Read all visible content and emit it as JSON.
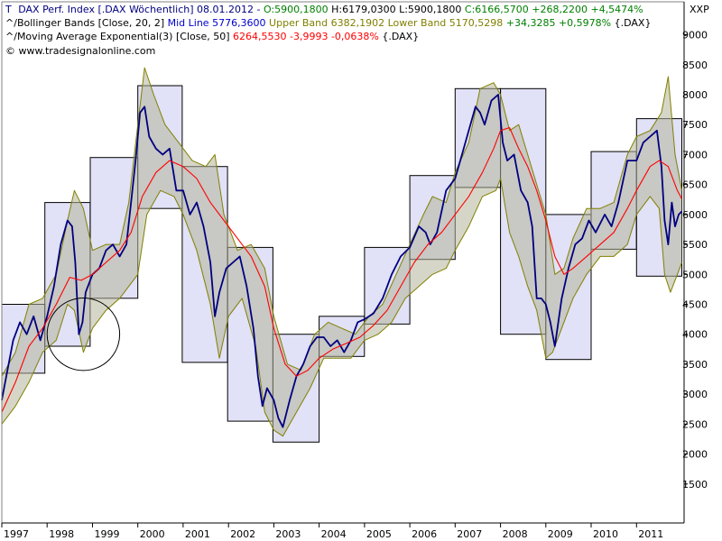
{
  "legend": {
    "line1": {
      "symbol": "T",
      "instrument": "DAX Perf. Index [.DAX  Wöchentlich] 08.01.2012 - ",
      "ohl_green": "O:5900,1800",
      "ohl_black": " H:6179,0300 L:5900,1800 ",
      "close_green": "C:6166,5700 +268,2200 +4,5474%"
    },
    "line2": {
      "symbol": "^/",
      "name": "Bollinger Bands [Close, 20, 2] ",
      "mid": "Mid Line 5776,3600",
      "upper": " Upper Band 6382,1902",
      "lower": " Lower Band 5170,5298",
      "change": " +34,3285 +0,5978%",
      "suffix": " {.DAX}"
    },
    "line3": {
      "symbol": "^/",
      "name": "Moving Average Exponential(3) [Close, 50] ",
      "values": "6264,5530 -3,9993 -0,0638%",
      "suffix": " {.DAX}"
    },
    "line4": {
      "copyright": "© www.tradesignalonline.com"
    }
  },
  "axis_corner_label": "XXP",
  "colors": {
    "price": "#000080",
    "ema": "#ff0000",
    "band_line": "#808000",
    "band_fill": "#b5b59a",
    "box_fill": "#c8c8f0",
    "box_stroke": "#000000",
    "green_text": "#008000",
    "blue_text": "#0000cc",
    "olive_text": "#808000"
  },
  "chart_data": {
    "type": "line",
    "instrument": "DAX Perf. Index",
    "interval": "Wöchentlich",
    "y_ticks": [
      1500,
      2000,
      2500,
      3000,
      3500,
      4000,
      4500,
      5000,
      5500,
      6000,
      6500,
      7000,
      7500,
      8000,
      8500,
      9000
    ],
    "ylim": [
      850,
      9550
    ],
    "x_ticks": [
      "1997",
      "1998",
      "1999",
      "2000",
      "2001",
      "2002",
      "2003",
      "2004",
      "2005",
      "2006",
      "2007",
      "2008",
      "2009",
      "2010",
      "2011"
    ],
    "xlim": [
      1997.0,
      2012.05
    ],
    "series": [
      {
        "name": "DAX Perf. Index",
        "kind": "price",
        "x": [
          1997.0,
          1997.1,
          1997.25,
          1997.4,
          1997.55,
          1997.7,
          1997.85,
          1998.0,
          1998.15,
          1998.3,
          1998.45,
          1998.55,
          1998.62,
          1998.7,
          1998.78,
          1998.85,
          1999.0,
          1999.15,
          1999.3,
          1999.45,
          1999.6,
          1999.75,
          1999.85,
          1999.95,
          2000.05,
          2000.15,
          2000.25,
          2000.4,
          2000.55,
          2000.7,
          2000.85,
          2001.0,
          2001.15,
          2001.3,
          2001.45,
          2001.6,
          2001.7,
          2001.8,
          2001.95,
          2002.1,
          2002.25,
          2002.4,
          2002.55,
          2002.65,
          2002.75,
          2002.85,
          2003.0,
          2003.1,
          2003.2,
          2003.35,
          2003.5,
          2003.65,
          2003.8,
          2003.95,
          2004.1,
          2004.25,
          2004.4,
          2004.55,
          2004.7,
          2004.85,
          2005.0,
          2005.2,
          2005.4,
          2005.6,
          2005.8,
          2006.0,
          2006.2,
          2006.35,
          2006.45,
          2006.6,
          2006.8,
          2007.0,
          2007.15,
          2007.3,
          2007.45,
          2007.55,
          2007.65,
          2007.8,
          2007.95,
          2008.05,
          2008.15,
          2008.3,
          2008.45,
          2008.6,
          2008.7,
          2008.8,
          2008.9,
          2009.0,
          2009.1,
          2009.2,
          2009.35,
          2009.5,
          2009.65,
          2009.8,
          2009.95,
          2010.1,
          2010.3,
          2010.45,
          2010.6,
          2010.8,
          2011.0,
          2011.15,
          2011.3,
          2011.45,
          2011.55,
          2011.62,
          2011.7,
          2011.78,
          2011.85,
          2011.93,
          2012.0
        ],
        "y": [
          2900,
          3300,
          3900,
          4200,
          4000,
          4300,
          3900,
          4300,
          4800,
          5500,
          5900,
          5800,
          5200,
          4000,
          4200,
          4700,
          5000,
          5100,
          5400,
          5500,
          5300,
          5500,
          6200,
          6900,
          7700,
          7800,
          7300,
          7100,
          7000,
          7100,
          6400,
          6400,
          6000,
          6200,
          5800,
          5200,
          4300,
          4700,
          5100,
          5200,
          5300,
          4800,
          4100,
          3300,
          2800,
          3100,
          2900,
          2600,
          2450,
          2900,
          3300,
          3500,
          3800,
          3950,
          3950,
          3800,
          3900,
          3700,
          3900,
          4200,
          4250,
          4350,
          4600,
          5000,
          5300,
          5450,
          5800,
          5700,
          5500,
          5700,
          6400,
          6600,
          7000,
          7400,
          7800,
          7700,
          7500,
          7900,
          8000,
          7200,
          6900,
          7000,
          6400,
          6200,
          5800,
          4600,
          4600,
          4500,
          4200,
          3800,
          4600,
          5100,
          5500,
          5600,
          5900,
          5700,
          6000,
          5800,
          6200,
          6900,
          6900,
          7200,
          7300,
          7400,
          6800,
          5900,
          5500,
          6200,
          5800,
          6000,
          6050
        ]
      },
      {
        "name": "Moving Average Exponential(3) [Close, 50]",
        "kind": "ema",
        "x": [
          1997.0,
          1997.3,
          1997.6,
          1997.9,
          1998.2,
          1998.5,
          1998.75,
          1999.0,
          1999.3,
          1999.6,
          1999.85,
          2000.1,
          2000.4,
          2000.7,
          2001.0,
          2001.3,
          2001.6,
          2001.9,
          2002.2,
          2002.5,
          2002.8,
          2003.0,
          2003.25,
          2003.5,
          2003.75,
          2004.0,
          2004.3,
          2004.6,
          2004.9,
          2005.2,
          2005.5,
          2005.8,
          2006.1,
          2006.4,
          2006.7,
          2007.0,
          2007.3,
          2007.6,
          2007.85,
          2008.0,
          2008.2,
          2008.4,
          2008.6,
          2008.8,
          2009.0,
          2009.2,
          2009.4,
          2009.6,
          2009.9,
          2010.2,
          2010.5,
          2010.8,
          2011.0,
          2011.3,
          2011.5,
          2011.7,
          2011.9,
          2012.0
        ],
        "y": [
          2700,
          3200,
          3800,
          4100,
          4500,
          4950,
          4900,
          5000,
          5200,
          5400,
          5700,
          6300,
          6700,
          6900,
          6800,
          6600,
          6200,
          5900,
          5600,
          5300,
          4800,
          4100,
          3500,
          3300,
          3400,
          3600,
          3750,
          3850,
          3950,
          4150,
          4400,
          4800,
          5200,
          5500,
          5700,
          6000,
          6300,
          6700,
          7100,
          7400,
          7450,
          7100,
          6800,
          6400,
          5900,
          5300,
          5000,
          5100,
          5300,
          5500,
          5700,
          6100,
          6400,
          6800,
          6900,
          6800,
          6400,
          6260
        ]
      },
      {
        "name": "Upper Band",
        "kind": "band_upper",
        "x": [
          1997.0,
          1997.3,
          1997.6,
          1997.9,
          1998.2,
          1998.45,
          1998.6,
          1998.8,
          1999.0,
          1999.3,
          1999.6,
          1999.8,
          2000.0,
          2000.15,
          2000.35,
          2000.6,
          2000.9,
          2001.2,
          2001.5,
          2001.7,
          2001.9,
          2002.2,
          2002.5,
          2002.8,
          2003.0,
          2003.3,
          2003.6,
          2003.9,
          2004.2,
          2004.5,
          2004.8,
          2005.1,
          2005.4,
          2005.7,
          2006.0,
          2006.3,
          2006.5,
          2006.8,
          2007.0,
          2007.3,
          2007.55,
          2007.85,
          2008.0,
          2008.2,
          2008.4,
          2008.6,
          2008.8,
          2009.0,
          2009.2,
          2009.4,
          2009.6,
          2009.9,
          2010.2,
          2010.5,
          2010.8,
          2011.0,
          2011.3,
          2011.55,
          2011.7,
          2011.85,
          2012.0
        ],
        "y": [
          3300,
          3700,
          4500,
          4600,
          5000,
          5900,
          6400,
          6100,
          5400,
          5500,
          5500,
          6200,
          7500,
          8450,
          8000,
          7500,
          7200,
          6900,
          6800,
          7000,
          6000,
          5400,
          5500,
          5100,
          4300,
          3500,
          3400,
          4000,
          4200,
          4100,
          4000,
          4300,
          4500,
          5000,
          5500,
          6000,
          6300,
          6200,
          6700,
          7200,
          8100,
          8200,
          8000,
          7400,
          7500,
          7000,
          6500,
          6000,
          5000,
          5100,
          5600,
          6100,
          6100,
          6200,
          7000,
          7300,
          7400,
          7700,
          8300,
          7000,
          6400
        ]
      },
      {
        "name": "Lower Band",
        "kind": "band_lower",
        "x": [
          1997.0,
          1997.3,
          1997.6,
          1997.9,
          1998.2,
          1998.45,
          1998.6,
          1998.8,
          1999.0,
          1999.3,
          1999.6,
          1999.8,
          2000.0,
          2000.2,
          2000.5,
          2000.8,
          2001.0,
          2001.3,
          2001.6,
          2001.8,
          2002.0,
          2002.3,
          2002.6,
          2002.8,
          2003.0,
          2003.2,
          2003.5,
          2003.8,
          2004.1,
          2004.4,
          2004.7,
          2005.0,
          2005.3,
          2005.6,
          2005.9,
          2006.2,
          2006.5,
          2006.8,
          2007.0,
          2007.3,
          2007.6,
          2007.9,
          2008.0,
          2008.2,
          2008.4,
          2008.6,
          2008.8,
          2009.0,
          2009.15,
          2009.3,
          2009.6,
          2009.9,
          2010.2,
          2010.5,
          2010.8,
          2011.0,
          2011.3,
          2011.5,
          2011.62,
          2011.75,
          2011.9,
          2012.0
        ],
        "y": [
          2500,
          2800,
          3200,
          3700,
          3900,
          4500,
          4400,
          3700,
          4100,
          4400,
          4600,
          4800,
          5000,
          6000,
          6400,
          6300,
          6000,
          5400,
          4500,
          3600,
          4300,
          4600,
          3800,
          2700,
          2400,
          2300,
          2700,
          3100,
          3600,
          3600,
          3600,
          3900,
          4000,
          4200,
          4600,
          4800,
          5000,
          5100,
          5400,
          5800,
          6300,
          6400,
          6600,
          5700,
          5300,
          4800,
          4400,
          3600,
          3700,
          4000,
          4600,
          5000,
          5300,
          5300,
          5500,
          6000,
          6300,
          6100,
          5000,
          4700,
          5000,
          5200
        ]
      }
    ],
    "annotations": {
      "yearly_range_boxes": [
        {
          "year": "1997",
          "x0": 1997.0,
          "x1": 1997.95,
          "low": 3350,
          "high": 4500
        },
        {
          "year": "1998",
          "x0": 1997.95,
          "x1": 1998.95,
          "low": 3800,
          "high": 6200
        },
        {
          "year": "1999",
          "x0": 1998.95,
          "x1": 2000.0,
          "low": 4600,
          "high": 6950
        },
        {
          "year": "2000",
          "x0": 2000.0,
          "x1": 2000.98,
          "low": 6100,
          "high": 8150
        },
        {
          "year": "2001",
          "x0": 2000.98,
          "x1": 2001.98,
          "low": 3530,
          "high": 6800
        },
        {
          "year": "2002",
          "x0": 2001.98,
          "x1": 2002.98,
          "low": 2550,
          "high": 5450
        },
        {
          "year": "2003",
          "x0": 2002.98,
          "x1": 2004.0,
          "low": 2200,
          "high": 4000
        },
        {
          "year": "2004",
          "x0": 2004.0,
          "x1": 2005.0,
          "low": 3630,
          "high": 4300
        },
        {
          "year": "2005",
          "x0": 2005.0,
          "x1": 2006.0,
          "low": 4170,
          "high": 5450
        },
        {
          "year": "2006",
          "x0": 2006.0,
          "x1": 2007.0,
          "low": 5250,
          "high": 6650
        },
        {
          "year": "2007",
          "x0": 2007.0,
          "x1": 2008.0,
          "low": 6450,
          "high": 8100
        },
        {
          "year": "2008",
          "x0": 2008.0,
          "x1": 2009.0,
          "low": 4000,
          "high": 8100
        },
        {
          "year": "2009",
          "x0": 2009.0,
          "x1": 2010.0,
          "low": 3580,
          "high": 6000
        },
        {
          "year": "2010",
          "x0": 2010.0,
          "x1": 2011.0,
          "low": 5420,
          "high": 7050
        },
        {
          "year": "2011",
          "x0": 2011.0,
          "x1": 2012.0,
          "low": 4970,
          "high": 7600
        }
      ],
      "circle": {
        "cx": 1998.8,
        "cy": 4000,
        "r_years": 0.8
      }
    },
    "grid": false,
    "legend_placement": "top-left"
  }
}
